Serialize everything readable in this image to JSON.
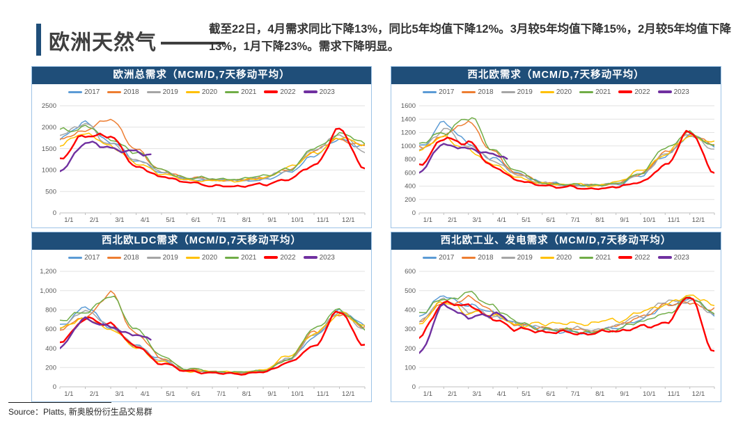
{
  "header": {
    "title": "欧洲天然气",
    "subtitle": "截至22日，4月需求同比下降13%，同比5年均值下降12%。3月较5年均值下降15%，2月较5年均值下降13%，1月下降23%。需求下降明显。"
  },
  "footer": {
    "source": "Source：Platts, 新奥股份衍生品交易群"
  },
  "theme": {
    "accent": "#1F4E79",
    "panel_border": "#9DC3E6",
    "grid_line": "#E2E2E2",
    "axis_line": "#BFBFBF",
    "axis_text": "#595959"
  },
  "chart_data": [
    {
      "type": "line",
      "title": "欧洲总需求（MCM/D,7天移动平均）",
      "legend_position": "top",
      "grid": true,
      "x_ticks": [
        "1/1",
        "2/1",
        "3/1",
        "4/1",
        "5/1",
        "6/1",
        "7/1",
        "8/1",
        "9/1",
        "10/1",
        "11/1",
        "12/1"
      ],
      "ylim": [
        0,
        2500
      ],
      "y_ticks": [
        0,
        500,
        1000,
        1500,
        2000,
        2500
      ],
      "y_tick_labels": [
        "0",
        "500",
        "1000",
        "1500",
        "2000",
        "2500"
      ],
      "series": [
        {
          "name": "2017",
          "color": "#5B9BD5",
          "thick": false,
          "monthly_values": [
            1750,
            2100,
            1650,
            1250,
            950,
            800,
            780,
            760,
            800,
            950,
            1350,
            1700,
            1500
          ]
        },
        {
          "name": "2018",
          "color": "#ED7D31",
          "thick": false,
          "monthly_values": [
            1700,
            1900,
            2150,
            1500,
            1000,
            820,
            780,
            760,
            800,
            1000,
            1400,
            1750,
            1550
          ]
        },
        {
          "name": "2019",
          "color": "#A5A5A5",
          "thick": false,
          "monthly_values": [
            1850,
            2050,
            1600,
            1250,
            950,
            800,
            780,
            770,
            820,
            980,
            1450,
            1800,
            1450
          ]
        },
        {
          "name": "2020",
          "color": "#FFC000",
          "thick": false,
          "monthly_values": [
            1650,
            1850,
            1550,
            1150,
            900,
            790,
            770,
            750,
            820,
            1050,
            1400,
            1750,
            1600
          ]
        },
        {
          "name": "2021",
          "color": "#70AD47",
          "thick": false,
          "monthly_values": [
            1900,
            2000,
            1750,
            1400,
            1000,
            820,
            800,
            780,
            830,
            1000,
            1500,
            1850,
            1600
          ]
        },
        {
          "name": "2022",
          "color": "#FF0000",
          "thick": true,
          "monthly_values": [
            1300,
            1800,
            1750,
            1100,
            850,
            700,
            650,
            630,
            680,
            800,
            1100,
            1900,
            1050
          ]
        },
        {
          "name": "2023",
          "color": "#7030A0",
          "thick": true,
          "monthly_values": [
            1000,
            1650,
            1500,
            1400
          ],
          "end_month": 3.7,
          "end_value": 1300
        }
      ]
    },
    {
      "type": "line",
      "title": "西北欧需求（MCM/D,7天移动平均）",
      "legend_position": "top",
      "grid": true,
      "x_ticks": [
        "1/1",
        "2/1",
        "3/1",
        "4/1",
        "5/1",
        "6/1",
        "7/1",
        "8/1",
        "9/1",
        "10/1",
        "11/1",
        "12/1"
      ],
      "ylim": [
        0,
        1600
      ],
      "y_ticks": [
        0,
        200,
        400,
        600,
        800,
        1000,
        1200,
        1400,
        1600
      ],
      "y_tick_labels": [
        "0",
        "200",
        "400",
        "600",
        "800",
        "1000",
        "1200",
        "1400",
        "1600"
      ],
      "series": [
        {
          "name": "2017",
          "color": "#5B9BD5",
          "thick": false,
          "monthly_values": [
            1000,
            1320,
            1050,
            800,
            580,
            450,
            420,
            400,
            430,
            560,
            850,
            1150,
            1000
          ]
        },
        {
          "name": "2018",
          "color": "#ED7D31",
          "thick": false,
          "monthly_values": [
            950,
            1150,
            1390,
            900,
            600,
            460,
            420,
            400,
            430,
            580,
            900,
            1180,
            1020
          ]
        },
        {
          "name": "2019",
          "color": "#A5A5A5",
          "thick": false,
          "monthly_values": [
            950,
            1250,
            1000,
            780,
            560,
            440,
            410,
            400,
            440,
            570,
            880,
            1200,
            950
          ]
        },
        {
          "name": "2020",
          "color": "#FFC000",
          "thick": false,
          "monthly_values": [
            920,
            1150,
            950,
            720,
            540,
            430,
            420,
            410,
            450,
            620,
            870,
            1180,
            1050
          ]
        },
        {
          "name": "2021",
          "color": "#70AD47",
          "thick": false,
          "monthly_values": [
            1050,
            1200,
            1440,
            950,
            620,
            450,
            430,
            410,
            440,
            580,
            950,
            1220,
            1000
          ]
        },
        {
          "name": "2022",
          "color": "#FF0000",
          "thick": true,
          "monthly_values": [
            720,
            1100,
            1050,
            680,
            500,
            400,
            380,
            360,
            390,
            480,
            700,
            1230,
            600
          ]
        },
        {
          "name": "2023",
          "color": "#7030A0",
          "thick": true,
          "monthly_values": [
            610,
            1020,
            950,
            870
          ],
          "end_month": 3.7,
          "end_value": 800
        }
      ]
    },
    {
      "type": "line",
      "title": "西北欧LDC需求（MCM/D,7天移动平均）",
      "legend_position": "top",
      "grid": true,
      "x_ticks": [
        "1/1",
        "2/1",
        "3/1",
        "4/1",
        "5/1",
        "6/1",
        "7/1",
        "8/1",
        "9/1",
        "10/1",
        "11/1",
        "12/1"
      ],
      "ylim": [
        0,
        1200
      ],
      "y_ticks": [
        0,
        200,
        400,
        600,
        800,
        1000,
        1200
      ],
      "y_tick_labels": [
        "0",
        "200",
        "400",
        "600",
        "800",
        "1,000",
        "1,200"
      ],
      "series": [
        {
          "name": "2017",
          "color": "#5B9BD5",
          "thick": false,
          "monthly_values": [
            650,
            830,
            620,
            420,
            280,
            170,
            150,
            140,
            160,
            280,
            520,
            780,
            650
          ]
        },
        {
          "name": "2018",
          "color": "#ED7D31",
          "thick": false,
          "monthly_values": [
            600,
            720,
            950,
            550,
            300,
            180,
            155,
            145,
            165,
            290,
            560,
            750,
            620
          ]
        },
        {
          "name": "2019",
          "color": "#A5A5A5",
          "thick": false,
          "monthly_values": [
            620,
            800,
            620,
            430,
            270,
            170,
            150,
            145,
            170,
            280,
            550,
            800,
            600
          ]
        },
        {
          "name": "2020",
          "color": "#FFC000",
          "thick": false,
          "monthly_values": [
            600,
            720,
            600,
            400,
            260,
            165,
            155,
            150,
            175,
            320,
            540,
            760,
            650
          ]
        },
        {
          "name": "2021",
          "color": "#70AD47",
          "thick": false,
          "monthly_values": [
            700,
            780,
            950,
            600,
            330,
            180,
            160,
            150,
            170,
            290,
            600,
            800,
            620
          ]
        },
        {
          "name": "2022",
          "color": "#FF0000",
          "thick": true,
          "monthly_values": [
            450,
            700,
            650,
            420,
            250,
            160,
            145,
            135,
            155,
            250,
            420,
            800,
            430
          ]
        },
        {
          "name": "2023",
          "color": "#7030A0",
          "thick": true,
          "monthly_values": [
            420,
            700,
            620,
            540
          ],
          "end_month": 3.7,
          "end_value": 480
        }
      ]
    },
    {
      "type": "line",
      "title": "西北欧工业、发电需求（MCM/D,7天移动平均）",
      "legend_position": "top",
      "grid": true,
      "x_ticks": [
        "1/1",
        "2/1",
        "3/1",
        "4/1",
        "5/1",
        "6/1",
        "7/1",
        "8/1",
        "9/1",
        "10/1",
        "11/1",
        "12/1"
      ],
      "ylim": [
        0,
        600
      ],
      "y_ticks": [
        0,
        100,
        200,
        300,
        400,
        500,
        600
      ],
      "y_tick_labels": [
        "0",
        "100",
        "200",
        "300",
        "400",
        "500",
        "600"
      ],
      "series": [
        {
          "name": "2017",
          "color": "#5B9BD5",
          "thick": false,
          "monthly_values": [
            370,
            470,
            420,
            380,
            330,
            300,
            290,
            280,
            300,
            350,
            420,
            450,
            380
          ]
        },
        {
          "name": "2018",
          "color": "#ED7D31",
          "thick": false,
          "monthly_values": [
            350,
            440,
            460,
            390,
            320,
            310,
            300,
            290,
            310,
            360,
            430,
            440,
            400
          ]
        },
        {
          "name": "2019",
          "color": "#A5A5A5",
          "thick": false,
          "monthly_values": [
            340,
            460,
            400,
            370,
            330,
            310,
            300,
            295,
            320,
            370,
            440,
            450,
            380
          ]
        },
        {
          "name": "2020",
          "color": "#FFC000",
          "thick": false,
          "monthly_values": [
            330,
            440,
            390,
            360,
            320,
            330,
            340,
            330,
            340,
            390,
            430,
            470,
            420
          ]
        },
        {
          "name": "2021",
          "color": "#70AD47",
          "thick": false,
          "monthly_values": [
            380,
            450,
            480,
            420,
            340,
            300,
            290,
            280,
            300,
            340,
            380,
            460,
            390
          ]
        },
        {
          "name": "2022",
          "color": "#FF0000",
          "thick": true,
          "monthly_values": [
            260,
            430,
            420,
            350,
            300,
            290,
            280,
            270,
            290,
            310,
            330,
            470,
            180
          ]
        },
        {
          "name": "2023",
          "color": "#7030A0",
          "thick": true,
          "monthly_values": [
            180,
            420,
            360,
            380
          ],
          "end_month": 3.7,
          "end_value": 350
        }
      ]
    }
  ]
}
